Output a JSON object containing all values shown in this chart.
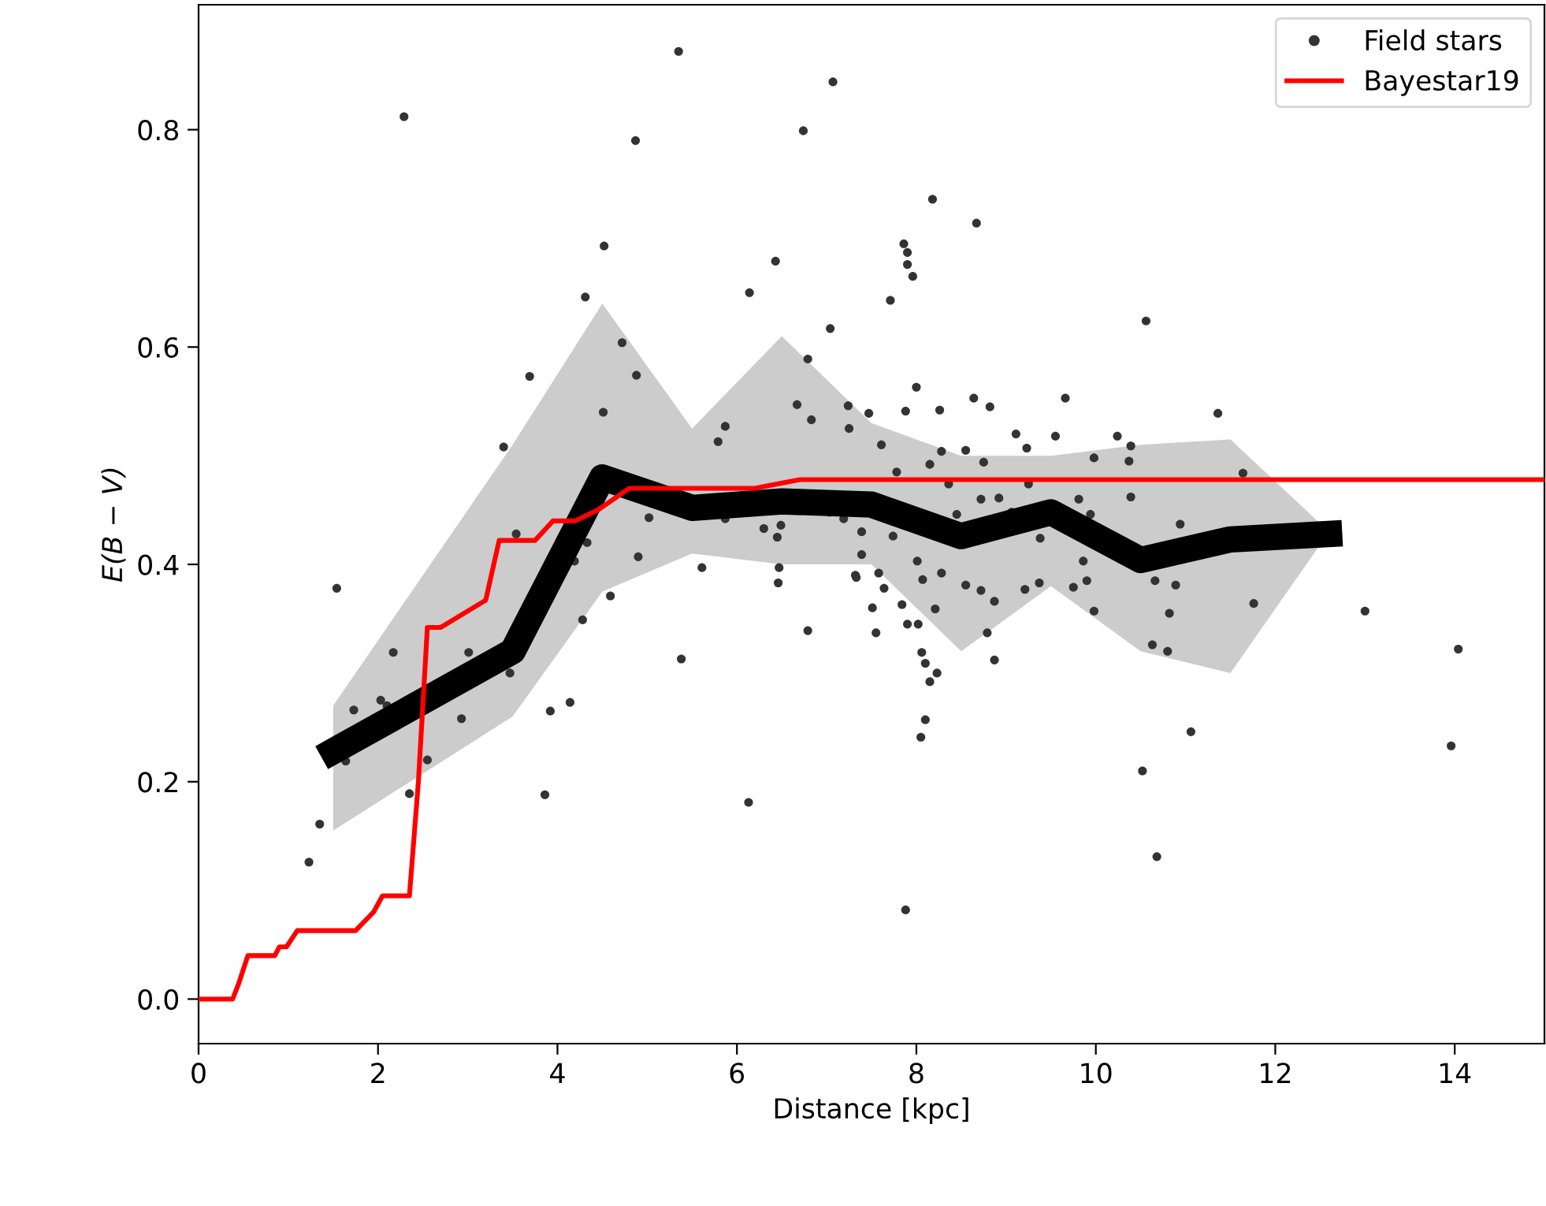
{
  "chart_data": {
    "type": "scatter",
    "xlabel": "Distance [kpc]",
    "ylabel": "E(B − V)",
    "xlim": [
      0,
      15
    ],
    "ylim": [
      -0.041,
      0.915
    ],
    "xticks": [
      0,
      2,
      4,
      6,
      8,
      10,
      12,
      14
    ],
    "yticks": [
      {
        "value": 0,
        "label": "0.0"
      },
      0.2,
      0.4,
      0.6,
      0.8
    ],
    "grid": false,
    "legend": "top right",
    "series": [
      {
        "type": "line",
        "color": "#000000",
        "x": [
          1.5,
          3.5,
          4.5,
          5.5,
          6.5,
          7.5,
          8.5,
          9.5,
          10.5,
          11.5,
          12.6
        ],
        "values": [
          0.228,
          0.32,
          0.48,
          0.452,
          0.458,
          0.455,
          0.426,
          0.448,
          0.404,
          0.423,
          0.428
        ],
        "lower": [
          0.155,
          0.26,
          0.375,
          0.41,
          0.4,
          0.4,
          0.32,
          0.38,
          0.32,
          0.3,
          0.43
        ],
        "upper": [
          0.27,
          0.51,
          0.64,
          0.525,
          0.61,
          0.53,
          0.5,
          0.5,
          0.51,
          0.515,
          0.43
        ]
      },
      {
        "name": "Field stars",
        "color": "#333333",
        "marker": "circle",
        "x": [
          2.29,
          5.35,
          7.07,
          4.87,
          6.74,
          4.52,
          4.31,
          6.43,
          6.14,
          7.04,
          4.72,
          3.69,
          4.88,
          6.79,
          3.4,
          4.51,
          6.67,
          6.83,
          5.87,
          5.79,
          7.24,
          7.25,
          5.02,
          5.87,
          6.3,
          6.49,
          6.45,
          7.03,
          7.19,
          3.54,
          4.33,
          4.19,
          4.9,
          5.61,
          6.47,
          6.46,
          7.33,
          4.59,
          4.28,
          6.79,
          1.54,
          2.17,
          3.01,
          3.47,
          5.38,
          1.73,
          2.03,
          2.1,
          2.93,
          3.92,
          4.14,
          1.64,
          2.55,
          2.35,
          3.86,
          6.13,
          1.35,
          1.23,
          8.18,
          8.67,
          7.86,
          7.9,
          7.9,
          7.96,
          7.71,
          10.56,
          8.0,
          8.64,
          8.82,
          9.66,
          7.47,
          7.88,
          8.26,
          11.36,
          9.11,
          9.55,
          10.24,
          10.39,
          9.23,
          8.55,
          7.61,
          8.28,
          9.98,
          10.37,
          8.75,
          11.64,
          7.78,
          8.15,
          8.36,
          9.25,
          10.39,
          9.81,
          8.92,
          8.72,
          9.94,
          9.06,
          8.45,
          10.94,
          7.39,
          7.74,
          9.38,
          9.86,
          7.39,
          8.01,
          7.32,
          7.58,
          8.28,
          8.55,
          8.72,
          9.21,
          9.37,
          9.75,
          9.9,
          10.66,
          10.89,
          7.64,
          8.07,
          7.84,
          7.51,
          8.21,
          8.87,
          9.98,
          10.82,
          11.76,
          13.0,
          7.55,
          7.9,
          8.02,
          8.79,
          8.06,
          8.1,
          8.23,
          8.15,
          8.87,
          10.63,
          10.8,
          14.04,
          8.1,
          8.05,
          11.06,
          10.52,
          13.96,
          10.68,
          7.88
        ],
        "values": [
          0.812,
          0.872,
          0.844,
          0.79,
          0.799,
          0.693,
          0.646,
          0.679,
          0.65,
          0.617,
          0.604,
          0.573,
          0.574,
          0.589,
          0.508,
          0.54,
          0.547,
          0.533,
          0.527,
          0.513,
          0.546,
          0.525,
          0.443,
          0.442,
          0.433,
          0.436,
          0.425,
          0.448,
          0.442,
          0.428,
          0.42,
          0.403,
          0.407,
          0.397,
          0.397,
          0.383,
          0.388,
          0.371,
          0.349,
          0.339,
          0.378,
          0.319,
          0.319,
          0.3,
          0.313,
          0.266,
          0.275,
          0.27,
          0.258,
          0.265,
          0.273,
          0.219,
          0.22,
          0.189,
          0.188,
          0.181,
          0.161,
          0.126,
          0.736,
          0.714,
          0.695,
          0.687,
          0.676,
          0.665,
          0.643,
          0.624,
          0.563,
          0.553,
          0.545,
          0.553,
          0.539,
          0.541,
          0.542,
          0.539,
          0.52,
          0.518,
          0.518,
          0.509,
          0.507,
          0.505,
          0.51,
          0.504,
          0.498,
          0.495,
          0.494,
          0.484,
          0.485,
          0.492,
          0.474,
          0.474,
          0.462,
          0.46,
          0.461,
          0.46,
          0.446,
          0.448,
          0.446,
          0.437,
          0.43,
          0.426,
          0.424,
          0.403,
          0.409,
          0.403,
          0.39,
          0.392,
          0.392,
          0.381,
          0.376,
          0.377,
          0.383,
          0.379,
          0.385,
          0.385,
          0.381,
          0.378,
          0.386,
          0.363,
          0.36,
          0.359,
          0.366,
          0.357,
          0.355,
          0.364,
          0.357,
          0.337,
          0.345,
          0.345,
          0.337,
          0.319,
          0.309,
          0.3,
          0.292,
          0.312,
          0.326,
          0.32,
          0.322,
          0.257,
          0.241,
          0.246,
          0.21,
          0.233,
          0.131,
          0.082
        ]
      },
      {
        "type": "line",
        "name": "Bayestar19",
        "color": "#ff0000",
        "marker": "none",
        "line_style": "solid",
        "x": [
          0,
          0.38,
          0.45,
          0.55,
          0.85,
          0.9,
          0.98,
          1.1,
          1.75,
          1.95,
          2.05,
          2.35,
          2.45,
          2.55,
          2.7,
          3.2,
          3.35,
          3.75,
          3.95,
          4.2,
          4.45,
          4.8,
          6.2,
          6.7,
          15
        ],
        "values": [
          0,
          0,
          0.015,
          0.04,
          0.04,
          0.048,
          0.048,
          0.063,
          0.063,
          0.08,
          0.095,
          0.095,
          0.2,
          0.342,
          0.342,
          0.367,
          0.422,
          0.422,
          0.44,
          0.44,
          0.45,
          0.47,
          0.47,
          0.478,
          0.478
        ]
      }
    ]
  }
}
